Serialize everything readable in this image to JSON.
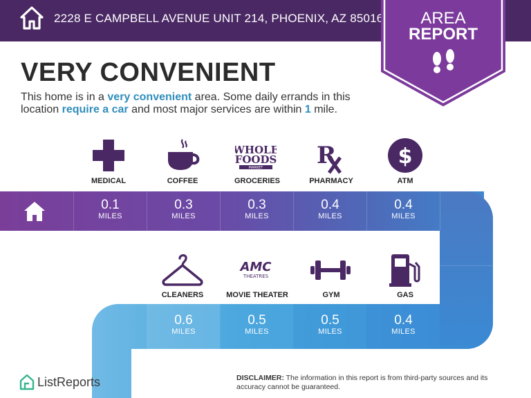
{
  "header": {
    "address": "2228 E CAMPBELL AVENUE UNIT 214, PHOENIX, AZ 85016",
    "home_icon": "house-icon"
  },
  "badge": {
    "line1": "AREA",
    "line2": "REPORT",
    "icon": "footsteps-icon"
  },
  "title": "VERY CONVENIENT",
  "summary": {
    "p1": "This home is in a ",
    "h1": "very convenient",
    "p2": " area. Some daily errands in this location ",
    "h2": "require a car",
    "p3": " and most major services are within ",
    "h3": "1",
    "p4": " mile."
  },
  "row1": [
    {
      "label": "MEDICAL",
      "distance": "0.1",
      "unit": "MILES",
      "icon": "medical-cross-icon"
    },
    {
      "label": "COFFEE",
      "distance": "0.3",
      "unit": "MILES",
      "icon": "coffee-cup-icon"
    },
    {
      "label": "GROCERIES",
      "distance": "0.3",
      "unit": "MILES",
      "icon": "whole-foods-logo-icon",
      "logo_lines": [
        "WHOLE",
        "FOODS",
        "MARKET"
      ]
    },
    {
      "label": "PHARMACY",
      "distance": "0.4",
      "unit": "MILES",
      "icon": "rx-icon"
    },
    {
      "label": "ATM",
      "distance": "0.4",
      "unit": "MILES",
      "icon": "dollar-icon"
    }
  ],
  "row2": [
    {
      "label": "CLEANERS",
      "distance": "0.6",
      "unit": "MILES",
      "icon": "hanger-icon"
    },
    {
      "label": "MOVIE THEATER",
      "distance": "0.5",
      "unit": "MILES",
      "icon": "amc-logo-icon",
      "logo_lines": [
        "AMC",
        "THEATRES"
      ]
    },
    {
      "label": "GYM",
      "distance": "0.5",
      "unit": "MILES",
      "icon": "dumbbell-icon"
    },
    {
      "label": "GAS",
      "distance": "0.4",
      "unit": "MILES",
      "icon": "gas-pump-icon"
    }
  ],
  "footer": {
    "brand": "ListReports",
    "disclaimer_label": "DISCLAIMER:",
    "disclaimer_text": " The information in this report is from third-party sources and its accuracy cannot be guaranteed."
  },
  "colors": {
    "header": "#4a2864",
    "badge": "#7b3a9c",
    "accent": "#2f8dbb",
    "icon": "#4a2864"
  }
}
